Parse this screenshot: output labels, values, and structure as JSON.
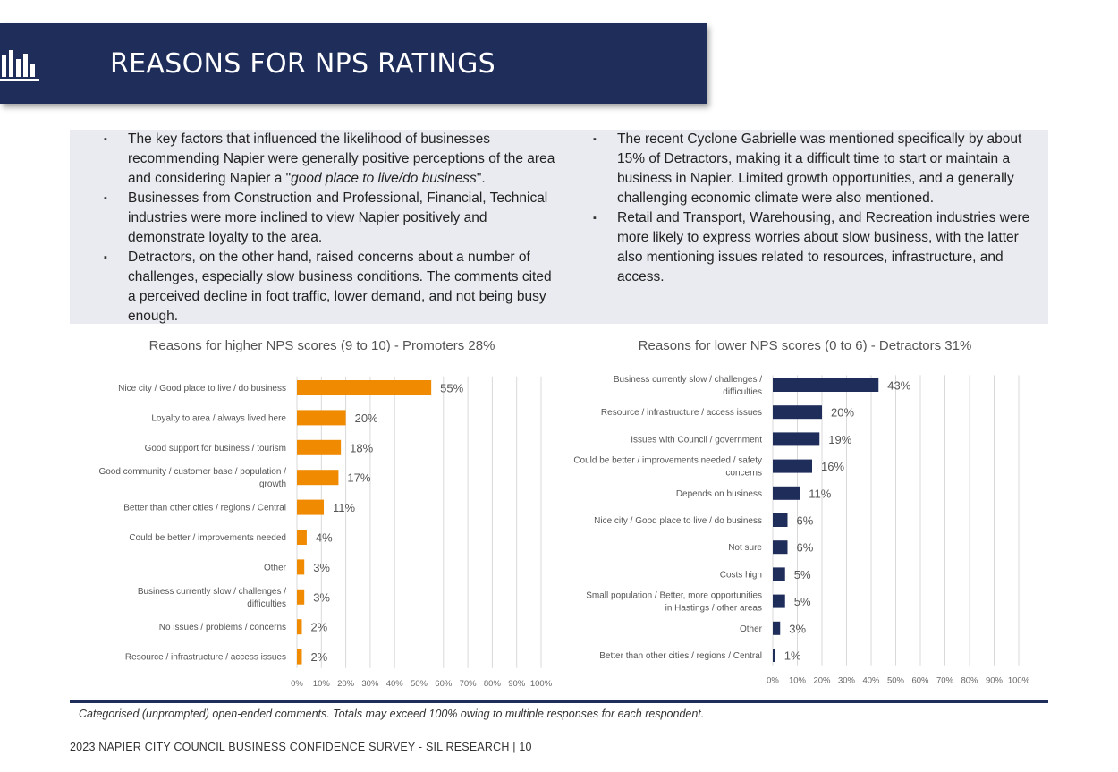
{
  "header": {
    "title": "REASONS FOR NPS RATINGS",
    "icon": "bar-chart-icon"
  },
  "summary": {
    "left": [
      "The key factors that influenced the likelihood of businesses recommending Napier were generally positive perceptions of the area and considering Napier a \"good place to live/do business\".",
      "Businesses from Construction and Professional, Financial, Technical industries were more inclined to view Napier positively and demonstrate loyalty to the area.",
      "Detractors, on the other hand, raised concerns about a number of challenges, especially slow business conditions. The comments cited a perceived decline in foot traffic, lower demand, and not being busy enough."
    ],
    "right": [
      "The recent Cyclone Gabrielle was mentioned specifically by about 15% of Detractors, making it a difficult time to start or maintain a business in Napier. Limited growth opportunities, and a generally challenging economic climate were also mentioned.",
      "Retail and Transport, Warehousing, and Recreation industries were more likely to express worries about slow business, with the latter also mentioning issues related to resources, infrastructure, and access."
    ]
  },
  "chart_data": [
    {
      "type": "bar",
      "orientation": "horizontal",
      "title": "Reasons for higher NPS scores (9 to 10) - Promoters 28%",
      "color": "#f08a00",
      "categories": [
        "Nice city / Good place to live / do business",
        "Loyalty to area / always lived here",
        "Good support for business / tourism",
        "Good community / customer base / population / growth",
        "Better than other cities / regions / Central",
        "Could be better / improvements needed",
        "Other",
        "Business currently slow / challenges / difficulties",
        "No issues / problems / concerns",
        "Resource / infrastructure / access issues"
      ],
      "values": [
        55,
        20,
        18,
        17,
        11,
        4,
        3,
        3,
        2,
        2
      ],
      "xlim": [
        0,
        100
      ],
      "xticks": [
        "0%",
        "10%",
        "20%",
        "30%",
        "40%",
        "50%",
        "60%",
        "70%",
        "80%",
        "90%",
        "100%"
      ],
      "grid": true
    },
    {
      "type": "bar",
      "orientation": "horizontal",
      "title": "Reasons for lower NPS scores (0 to 6) - Detractors 31%",
      "color": "#1f2d5a",
      "categories": [
        "Business currently slow / challenges / difficulties",
        "Resource / infrastructure / access issues",
        "Issues with Council / government",
        "Could be better / improvements needed / safety concerns",
        "Depends on business",
        "Nice city / Good place to live / do business",
        "Not sure",
        "Costs high",
        "Small population / Better, more opportunities in Hastings / other areas",
        "Other",
        "Better than other cities / regions / Central"
      ],
      "values": [
        43,
        20,
        19,
        16,
        11,
        6,
        6,
        5,
        5,
        3,
        1
      ],
      "xlim": [
        0,
        100
      ],
      "xticks": [
        "0%",
        "10%",
        "20%",
        "30%",
        "40%",
        "50%",
        "60%",
        "70%",
        "80%",
        "90%",
        "100%"
      ],
      "grid": true
    }
  ],
  "footnote": "Categorised (unprompted) open-ended comments. Totals may exceed 100% owing to multiple responses for each respondent.",
  "footer": "2023 NAPIER CITY COUNCIL BUSINESS CONFIDENCE SURVEY - SIL RESEARCH | 10"
}
